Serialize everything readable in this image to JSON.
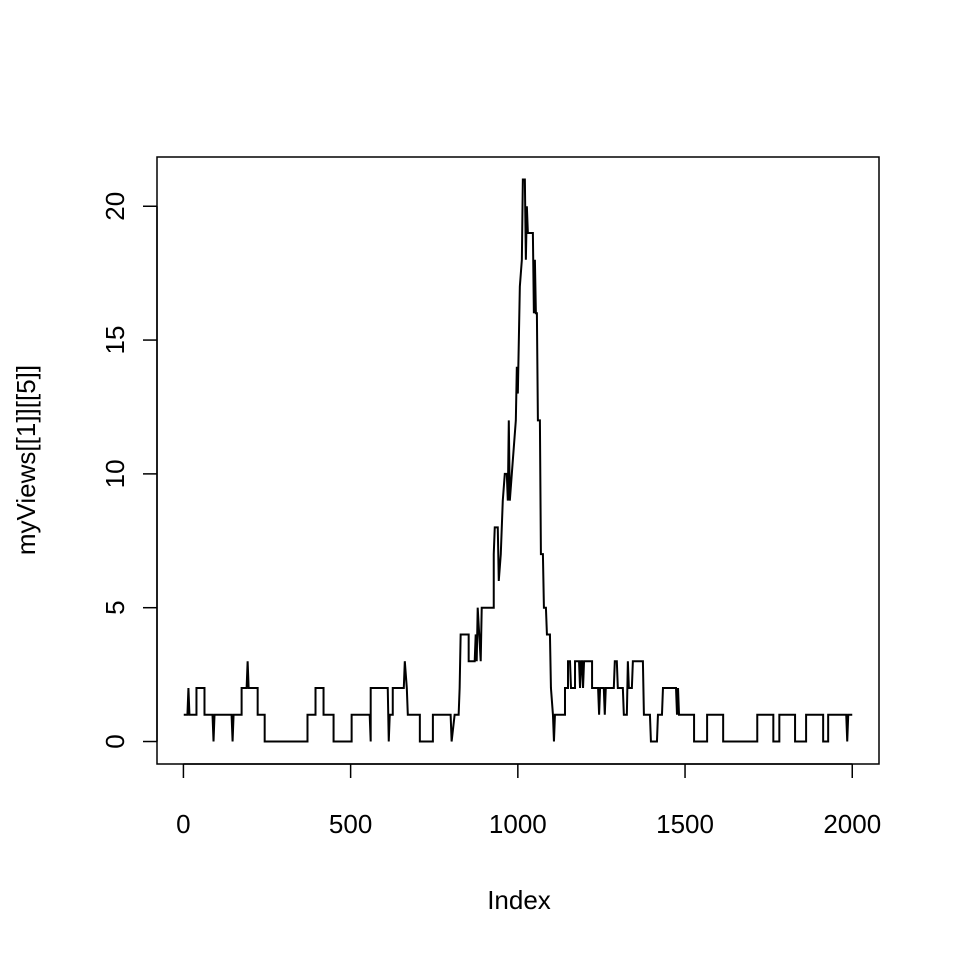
{
  "chart_data": {
    "type": "line",
    "xlabel": "Index",
    "ylabel": "myViews[[1]][[5]]",
    "color": "#000000",
    "x": [
      1,
      12,
      15,
      18,
      39,
      39,
      63,
      63,
      87,
      90,
      93,
      144,
      147,
      150,
      174,
      174,
      189,
      192,
      195,
      222,
      222,
      243,
      243,
      371,
      371,
      395,
      395,
      419,
      419,
      449,
      449,
      503,
      503,
      557,
      560,
      560,
      611,
      614,
      617,
      626,
      626,
      659,
      662,
      668,
      671,
      707,
      707,
      746,
      746,
      799,
      802,
      811,
      823,
      826,
      829,
      853,
      853,
      871,
      874,
      877,
      880,
      889,
      892,
      928,
      928,
      931,
      940,
      943,
      949,
      955,
      961,
      967,
      970,
      973,
      976,
      982,
      988,
      994,
      997,
      1000,
      1006,
      1012,
      1015,
      1021,
      1024,
      1027,
      1030,
      1045,
      1048,
      1051,
      1054,
      1057,
      1060,
      1066,
      1069,
      1075,
      1078,
      1084,
      1087,
      1096,
      1099,
      1105,
      1108,
      1111,
      1141,
      1141,
      1150,
      1150,
      1156,
      1159,
      1171,
      1171,
      1183,
      1186,
      1189,
      1192,
      1195,
      1198,
      1222,
      1222,
      1240,
      1243,
      1246,
      1257,
      1260,
      1263,
      1275,
      1287,
      1290,
      1296,
      1299,
      1314,
      1317,
      1326,
      1329,
      1332,
      1341,
      1344,
      1374,
      1377,
      1395,
      1398,
      1416,
      1419,
      1431,
      1434,
      1473,
      1476,
      1479,
      1482,
      1527,
      1527,
      1566,
      1566,
      1614,
      1614,
      1716,
      1716,
      1764,
      1764,
      1782,
      1782,
      1829,
      1829,
      1862,
      1862,
      1913,
      1913,
      1928,
      1928,
      1982,
      1985,
      1988,
      2000
    ],
    "values": [
      1,
      1,
      2,
      1,
      1,
      2,
      2,
      1,
      1,
      0,
      1,
      1,
      0,
      1,
      1,
      2,
      2,
      3,
      2,
      2,
      1,
      1,
      0,
      0,
      1,
      1,
      2,
      2,
      1,
      1,
      0,
      0,
      1,
      1,
      0,
      2,
      2,
      0,
      1,
      1,
      2,
      2,
      3,
      2,
      1,
      1,
      0,
      0,
      1,
      1,
      0,
      1,
      1,
      2,
      4,
      4,
      3,
      3,
      4,
      3,
      5,
      3,
      5,
      5,
      7,
      8,
      8,
      6,
      7,
      9,
      10,
      10,
      9,
      12,
      9,
      10,
      11,
      12,
      14,
      13,
      17,
      18,
      21,
      21,
      18,
      20,
      19,
      19,
      16,
      18,
      16,
      16,
      12,
      12,
      7,
      7,
      5,
      5,
      4,
      4,
      2,
      1,
      0,
      1,
      1,
      2,
      2,
      3,
      3,
      2,
      2,
      3,
      3,
      2,
      3,
      3,
      2,
      3,
      3,
      2,
      2,
      1,
      2,
      2,
      1,
      2,
      2,
      2,
      3,
      3,
      2,
      2,
      1,
      1,
      3,
      2,
      2,
      3,
      3,
      1,
      1,
      0,
      0,
      1,
      1,
      2,
      2,
      1,
      2,
      1,
      1,
      0,
      0,
      1,
      1,
      0,
      0,
      1,
      1,
      0,
      0,
      1,
      1,
      0,
      0,
      1,
      1,
      0,
      0,
      1,
      1,
      0,
      1,
      1
    ],
    "xlim": [
      -79,
      2080
    ],
    "ylim": [
      -0.84,
      21.84
    ],
    "xticks": [
      0,
      500,
      1000,
      1500,
      2000
    ],
    "yticks": [
      0,
      5,
      10,
      15,
      20
    ],
    "grid": false
  }
}
